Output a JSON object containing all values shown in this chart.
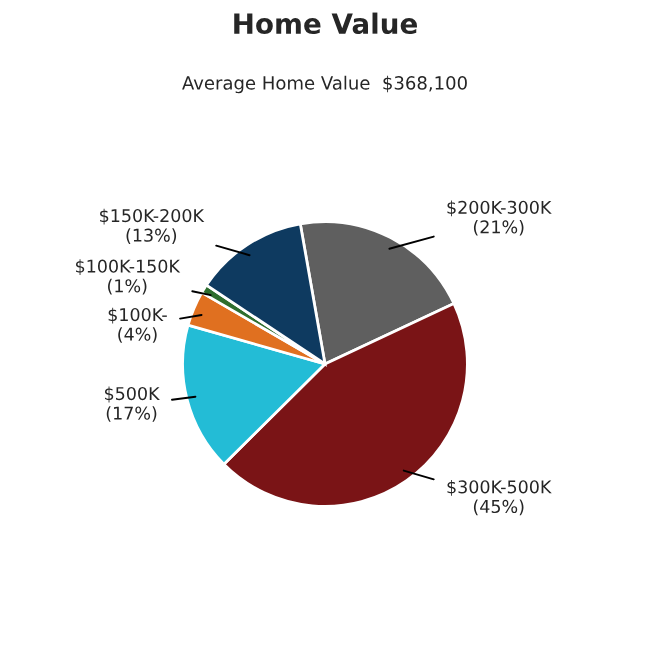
{
  "chart_data": {
    "type": "pie",
    "title": "Home Value",
    "subtitle": "Average Home Value  $368,100",
    "categories": [
      "$200K-300K",
      "$300K-500K",
      "$500K",
      "$100K-",
      "$100K-150K",
      "$150K-200K"
    ],
    "values": [
      21,
      45,
      17,
      4,
      1,
      13
    ],
    "value_labels": [
      "(21%)",
      "(45%)",
      "(17%)",
      "(4%)",
      "(1%)",
      "(13%)"
    ],
    "colors": [
      "#5f5f5f",
      "#7a1416",
      "#23bcd6",
      "#e07020",
      "#2e6e2e",
      "#0e3a60"
    ],
    "legend": false
  }
}
